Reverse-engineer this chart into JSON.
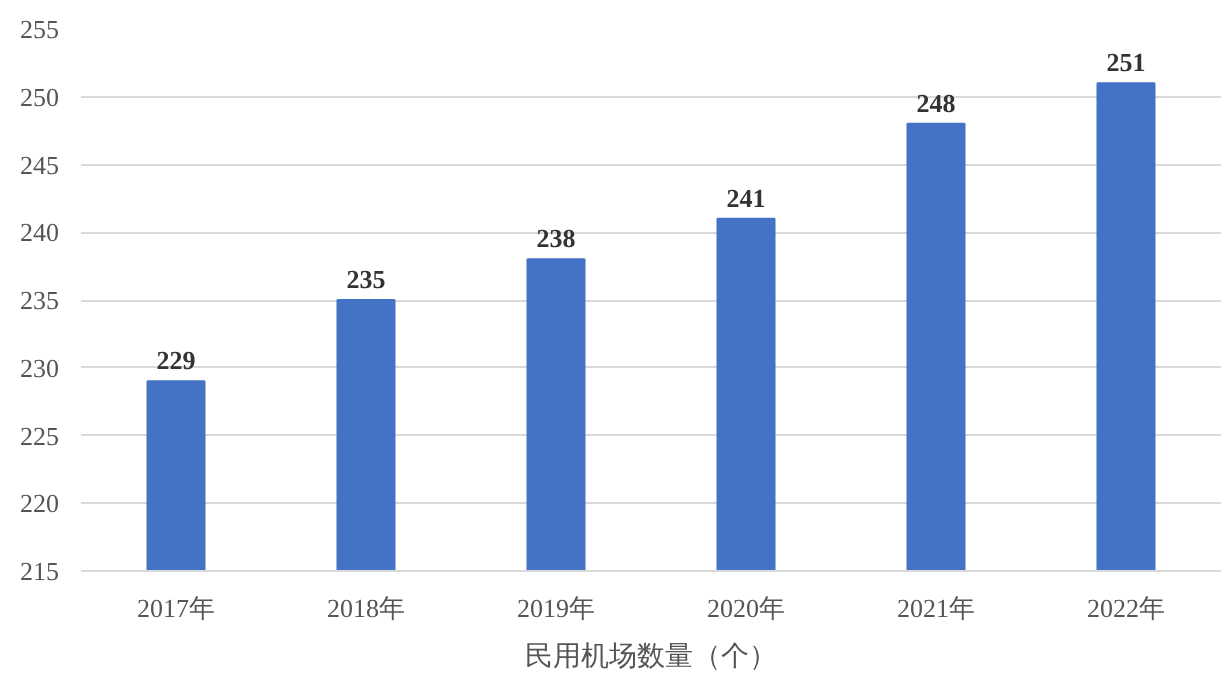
{
  "chart_data": {
    "type": "bar",
    "xlabel": "民用机场数量（个）",
    "categories": [
      "2017年",
      "2018年",
      "2019年",
      "2020年",
      "2021年",
      "2022年"
    ],
    "values": [
      229,
      235,
      238,
      241,
      248,
      251
    ],
    "color": "#4472c4",
    "ylim": [
      215,
      255
    ],
    "yticks": [
      215,
      220,
      225,
      230,
      235,
      240,
      245,
      250,
      255
    ],
    "grid": "y",
    "data_labels": true
  }
}
